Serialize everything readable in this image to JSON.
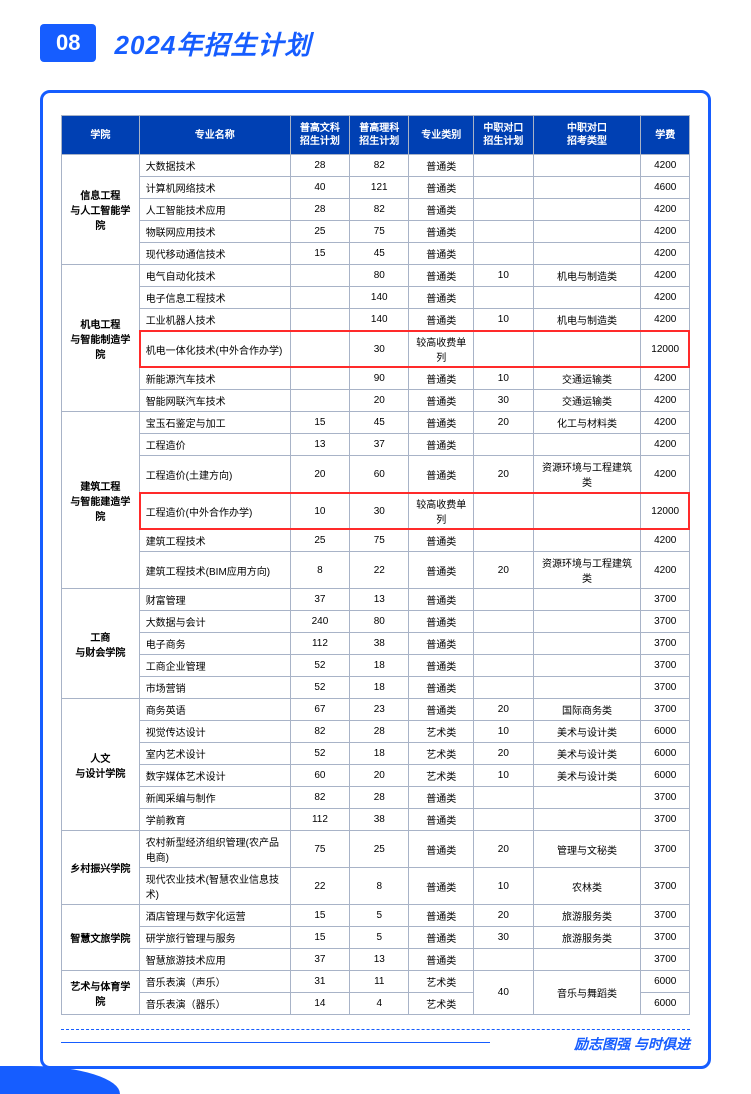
{
  "header": {
    "badge": "08",
    "title": "2024年招生计划"
  },
  "footer": {
    "slogan": "励志图强 与时俱进"
  },
  "table": {
    "headers": {
      "college": "学院",
      "major": "专业名称",
      "liberal": "普高文科\n招生计划",
      "science": "普高理科\n招生计划",
      "category": "专业类别",
      "vocPlan": "中职对口\n招生计划",
      "vocType": "中职对口\n招考类型",
      "tuition": "学费"
    },
    "colleges": [
      {
        "name": "信息工程\n与人工智能学院",
        "rows": [
          {
            "major": "大数据技术",
            "liberal": "28",
            "science": "82",
            "category": "普通类",
            "vocPlan": "",
            "vocType": "",
            "tuition": "4200"
          },
          {
            "major": "计算机网络技术",
            "liberal": "40",
            "science": "121",
            "category": "普通类",
            "vocPlan": "",
            "vocType": "",
            "tuition": "4600"
          },
          {
            "major": "人工智能技术应用",
            "liberal": "28",
            "science": "82",
            "category": "普通类",
            "vocPlan": "",
            "vocType": "",
            "tuition": "4200"
          },
          {
            "major": "物联网应用技术",
            "liberal": "25",
            "science": "75",
            "category": "普通类",
            "vocPlan": "",
            "vocType": "",
            "tuition": "4200"
          },
          {
            "major": "现代移动通信技术",
            "liberal": "15",
            "science": "45",
            "category": "普通类",
            "vocPlan": "",
            "vocType": "",
            "tuition": "4200"
          }
        ]
      },
      {
        "name": "机电工程\n与智能制造学院",
        "rows": [
          {
            "major": "电气自动化技术",
            "liberal": "",
            "science": "80",
            "category": "普通类",
            "vocPlan": "10",
            "vocType": "机电与制造类",
            "tuition": "4200"
          },
          {
            "major": "电子信息工程技术",
            "liberal": "",
            "science": "140",
            "category": "普通类",
            "vocPlan": "",
            "vocType": "",
            "tuition": "4200"
          },
          {
            "major": "工业机器人技术",
            "liberal": "",
            "science": "140",
            "category": "普通类",
            "vocPlan": "10",
            "vocType": "机电与制造类",
            "tuition": "4200"
          },
          {
            "major": "机电一体化技术(中外合作办学)",
            "liberal": "",
            "science": "30",
            "category": "较高收费单列",
            "vocPlan": "",
            "vocType": "",
            "tuition": "12000",
            "highlight": true
          },
          {
            "major": "新能源汽车技术",
            "liberal": "",
            "science": "90",
            "category": "普通类",
            "vocPlan": "10",
            "vocType": "交通运输类",
            "tuition": "4200"
          },
          {
            "major": "智能网联汽车技术",
            "liberal": "",
            "science": "20",
            "category": "普通类",
            "vocPlan": "30",
            "vocType": "交通运输类",
            "tuition": "4200"
          }
        ]
      },
      {
        "name": "建筑工程\n与智能建造学院",
        "rows": [
          {
            "major": "宝玉石鉴定与加工",
            "liberal": "15",
            "science": "45",
            "category": "普通类",
            "vocPlan": "20",
            "vocType": "化工与材料类",
            "tuition": "4200"
          },
          {
            "major": "工程造价",
            "liberal": "13",
            "science": "37",
            "category": "普通类",
            "vocPlan": "",
            "vocType": "",
            "tuition": "4200"
          },
          {
            "major": "工程造价(土建方向)",
            "liberal": "20",
            "science": "60",
            "category": "普通类",
            "vocPlan": "20",
            "vocType": "资源环境与工程建筑类",
            "tuition": "4200"
          },
          {
            "major": "工程造价(中外合作办学)",
            "liberal": "10",
            "science": "30",
            "category": "较高收费单列",
            "vocPlan": "",
            "vocType": "",
            "tuition": "12000",
            "highlight": true
          },
          {
            "major": "建筑工程技术",
            "liberal": "25",
            "science": "75",
            "category": "普通类",
            "vocPlan": "",
            "vocType": "",
            "tuition": "4200"
          },
          {
            "major": "建筑工程技术(BIM应用方向)",
            "liberal": "8",
            "science": "22",
            "category": "普通类",
            "vocPlan": "20",
            "vocType": "资源环境与工程建筑类",
            "tuition": "4200"
          }
        ]
      },
      {
        "name": "工商\n与财会学院",
        "rows": [
          {
            "major": "财富管理",
            "liberal": "37",
            "science": "13",
            "category": "普通类",
            "vocPlan": "",
            "vocType": "",
            "tuition": "3700"
          },
          {
            "major": "大数据与会计",
            "liberal": "240",
            "science": "80",
            "category": "普通类",
            "vocPlan": "",
            "vocType": "",
            "tuition": "3700"
          },
          {
            "major": "电子商务",
            "liberal": "112",
            "science": "38",
            "category": "普通类",
            "vocPlan": "",
            "vocType": "",
            "tuition": "3700"
          },
          {
            "major": "工商企业管理",
            "liberal": "52",
            "science": "18",
            "category": "普通类",
            "vocPlan": "",
            "vocType": "",
            "tuition": "3700"
          },
          {
            "major": "市场营销",
            "liberal": "52",
            "science": "18",
            "category": "普通类",
            "vocPlan": "",
            "vocType": "",
            "tuition": "3700"
          }
        ]
      },
      {
        "name": "人文\n与设计学院",
        "rows": [
          {
            "major": "商务英语",
            "liberal": "67",
            "science": "23",
            "category": "普通类",
            "vocPlan": "20",
            "vocType": "国际商务类",
            "tuition": "3700"
          },
          {
            "major": "视觉传达设计",
            "liberal": "82",
            "science": "28",
            "category": "艺术类",
            "vocPlan": "10",
            "vocType": "美术与设计类",
            "tuition": "6000"
          },
          {
            "major": "室内艺术设计",
            "liberal": "52",
            "science": "18",
            "category": "艺术类",
            "vocPlan": "20",
            "vocType": "美术与设计类",
            "tuition": "6000"
          },
          {
            "major": "数字媒体艺术设计",
            "liberal": "60",
            "science": "20",
            "category": "艺术类",
            "vocPlan": "10",
            "vocType": "美术与设计类",
            "tuition": "6000"
          },
          {
            "major": "新闻采编与制作",
            "liberal": "82",
            "science": "28",
            "category": "普通类",
            "vocPlan": "",
            "vocType": "",
            "tuition": "3700"
          },
          {
            "major": "学前教育",
            "liberal": "112",
            "science": "38",
            "category": "普通类",
            "vocPlan": "",
            "vocType": "",
            "tuition": "3700"
          }
        ]
      },
      {
        "name": "乡村振兴学院",
        "rows": [
          {
            "major": "农村新型经济组织管理(农产品电商)",
            "liberal": "75",
            "science": "25",
            "category": "普通类",
            "vocPlan": "20",
            "vocType": "管理与文秘类",
            "tuition": "3700"
          },
          {
            "major": "现代农业技术(智慧农业信息技术)",
            "liberal": "22",
            "science": "8",
            "category": "普通类",
            "vocPlan": "10",
            "vocType": "农林类",
            "tuition": "3700"
          }
        ]
      },
      {
        "name": "智慧文旅学院",
        "rows": [
          {
            "major": "酒店管理与数字化运营",
            "liberal": "15",
            "science": "5",
            "category": "普通类",
            "vocPlan": "20",
            "vocType": "旅游服务类",
            "tuition": "3700"
          },
          {
            "major": "研学旅行管理与服务",
            "liberal": "15",
            "science": "5",
            "category": "普通类",
            "vocPlan": "30",
            "vocType": "旅游服务类",
            "tuition": "3700"
          },
          {
            "major": "智慧旅游技术应用",
            "liberal": "37",
            "science": "13",
            "category": "普通类",
            "vocPlan": "",
            "vocType": "",
            "tuition": "3700"
          }
        ]
      },
      {
        "name": "艺术与体育学院",
        "mergeVoc": {
          "vocPlan": "40",
          "vocType": "音乐与舞蹈类",
          "span": 2
        },
        "rows": [
          {
            "major": "音乐表演（声乐）",
            "liberal": "31",
            "science": "11",
            "category": "艺术类",
            "tuition": "6000"
          },
          {
            "major": "音乐表演（器乐）",
            "liberal": "14",
            "science": "4",
            "category": "艺术类",
            "tuition": "6000"
          }
        ]
      }
    ]
  }
}
